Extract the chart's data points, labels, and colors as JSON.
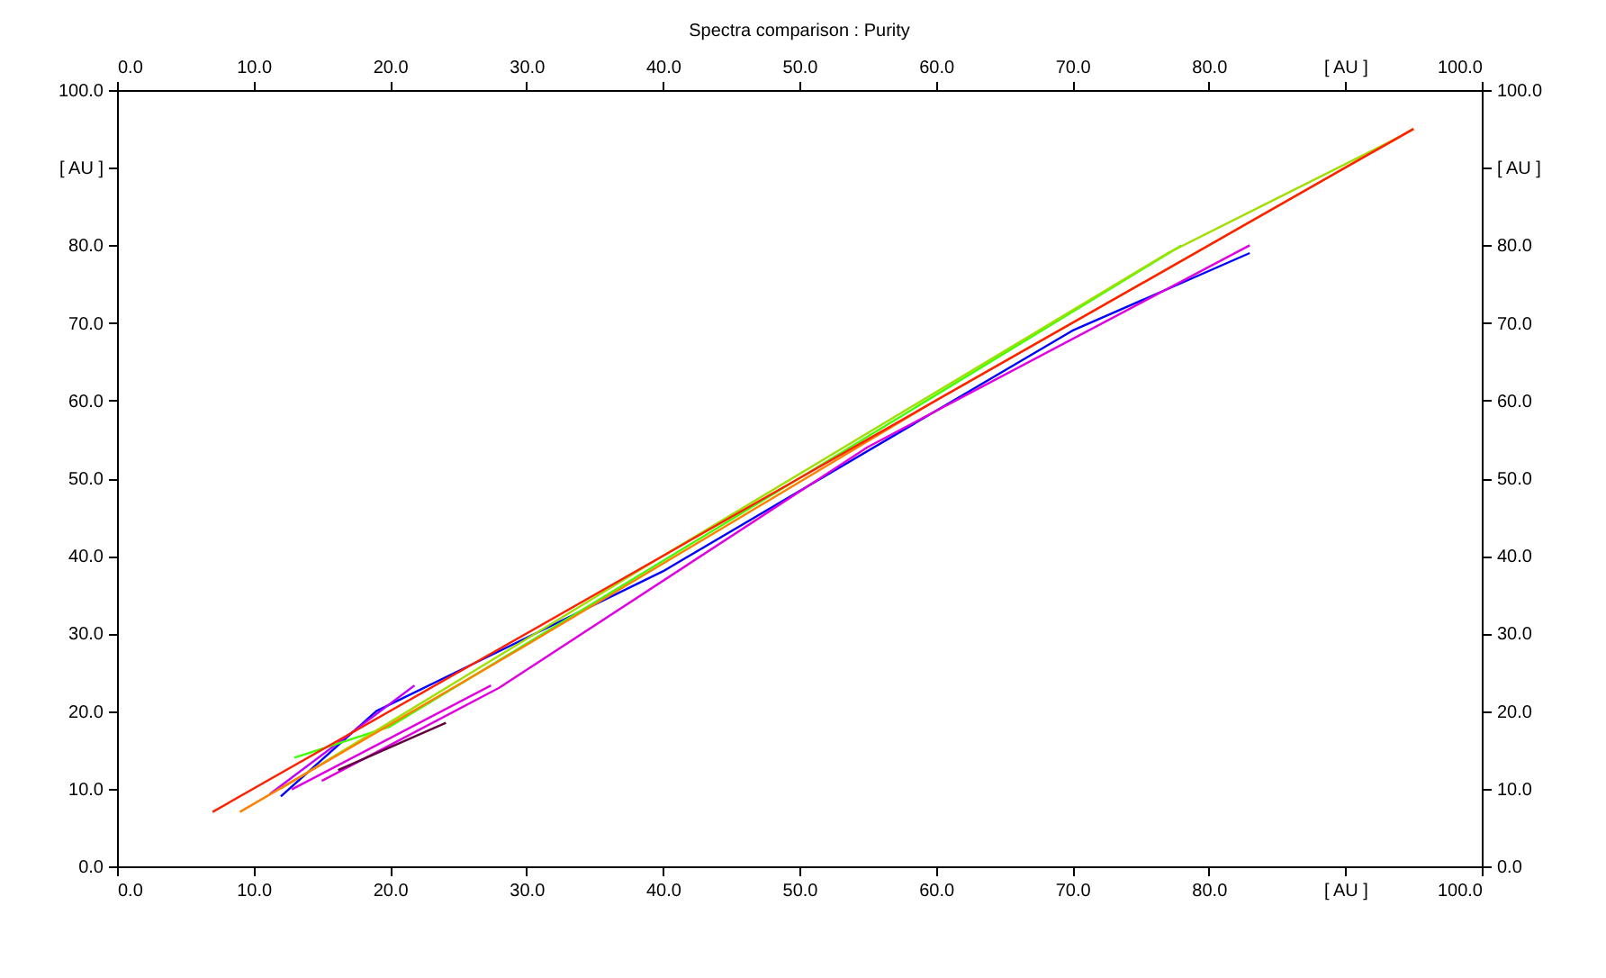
{
  "chart_data": {
    "type": "line",
    "title": "Spectra comparison : Purity",
    "xlim": [
      0,
      100
    ],
    "ylim": [
      0,
      100
    ],
    "x2lim": [
      0,
      100
    ],
    "y2lim": [
      0,
      100
    ],
    "xticks": [
      {
        "value": 0,
        "label": "0.0"
      },
      {
        "value": 10,
        "label": "10.0"
      },
      {
        "value": 20,
        "label": "20.0"
      },
      {
        "value": 30,
        "label": "30.0"
      },
      {
        "value": 40,
        "label": "40.0"
      },
      {
        "value": 50,
        "label": "50.0"
      },
      {
        "value": 60,
        "label": "60.0"
      },
      {
        "value": 70,
        "label": "70.0"
      },
      {
        "value": 80,
        "label": "80.0"
      },
      {
        "value": 90,
        "label": "[ AU ]"
      },
      {
        "value": 100,
        "label": "100.0"
      }
    ],
    "x2ticks": [
      {
        "value": 0,
        "label": "0.0"
      },
      {
        "value": 10,
        "label": "10.0"
      },
      {
        "value": 20,
        "label": "20.0"
      },
      {
        "value": 30,
        "label": "30.0"
      },
      {
        "value": 40,
        "label": "40.0"
      },
      {
        "value": 50,
        "label": "50.0"
      },
      {
        "value": 60,
        "label": "60.0"
      },
      {
        "value": 70,
        "label": "70.0"
      },
      {
        "value": 80,
        "label": "80.0"
      },
      {
        "value": 90,
        "label": "[ AU ]"
      },
      {
        "value": 100,
        "label": "100.0"
      }
    ],
    "yticks": [
      {
        "value": 0,
        "label": "0.0"
      },
      {
        "value": 10,
        "label": "10.0"
      },
      {
        "value": 20,
        "label": "20.0"
      },
      {
        "value": 30,
        "label": "30.0"
      },
      {
        "value": 40,
        "label": "40.0"
      },
      {
        "value": 50,
        "label": "50.0"
      },
      {
        "value": 60,
        "label": "60.0"
      },
      {
        "value": 70,
        "label": "70.0"
      },
      {
        "value": 80,
        "label": "80.0"
      },
      {
        "value": 90,
        "label": "[ AU ]"
      },
      {
        "value": 100,
        "label": "100.0"
      }
    ],
    "y2ticks": [
      {
        "value": 0,
        "label": "0.0"
      },
      {
        "value": 10,
        "label": "10.0"
      },
      {
        "value": 20,
        "label": "20.0"
      },
      {
        "value": 30,
        "label": "30.0"
      },
      {
        "value": 40,
        "label": "40.0"
      },
      {
        "value": 50,
        "label": "50.0"
      },
      {
        "value": 60,
        "label": "60.0"
      },
      {
        "value": 70,
        "label": "70.0"
      },
      {
        "value": 80,
        "label": "80.0"
      },
      {
        "value": 90,
        "label": "[ AU ]"
      },
      {
        "value": 100,
        "label": "100.0"
      }
    ],
    "grid": false,
    "legend": false,
    "series": [
      {
        "color": "#0000ff",
        "x": [
          12,
          19,
          40,
          70,
          83
        ],
        "values": [
          9,
          20,
          38,
          69,
          79
        ]
      },
      {
        "color": "#e000e0",
        "x": [
          15,
          28,
          55,
          83
        ],
        "values": [
          11,
          23,
          54,
          80
        ]
      },
      {
        "color": "#e000e0",
        "x": [
          12.8,
          27.4
        ],
        "values": [
          9.9,
          23.3
        ]
      },
      {
        "color": "#600040",
        "x": [
          16.2,
          24.1
        ],
        "values": [
          12.4,
          18.5
        ]
      },
      {
        "color": "#c000ff",
        "x": [
          11.2,
          21.8
        ],
        "values": [
          9.3,
          23.3
        ]
      },
      {
        "color": "#40ff00",
        "x": [
          13,
          20,
          50,
          78
        ],
        "values": [
          14,
          18,
          50,
          80
        ]
      },
      {
        "color": "#a0e000",
        "x": [
          12,
          40,
          77,
          94
        ],
        "values": [
          10,
          40,
          79,
          94
        ]
      },
      {
        "color": "#ff8000",
        "x": [
          9,
          30,
          60,
          95
        ],
        "values": [
          7,
          28.5,
          60,
          95
        ]
      },
      {
        "color": "#ff2000",
        "x": [
          7,
          50,
          95
        ],
        "values": [
          7,
          50,
          95
        ]
      }
    ]
  }
}
